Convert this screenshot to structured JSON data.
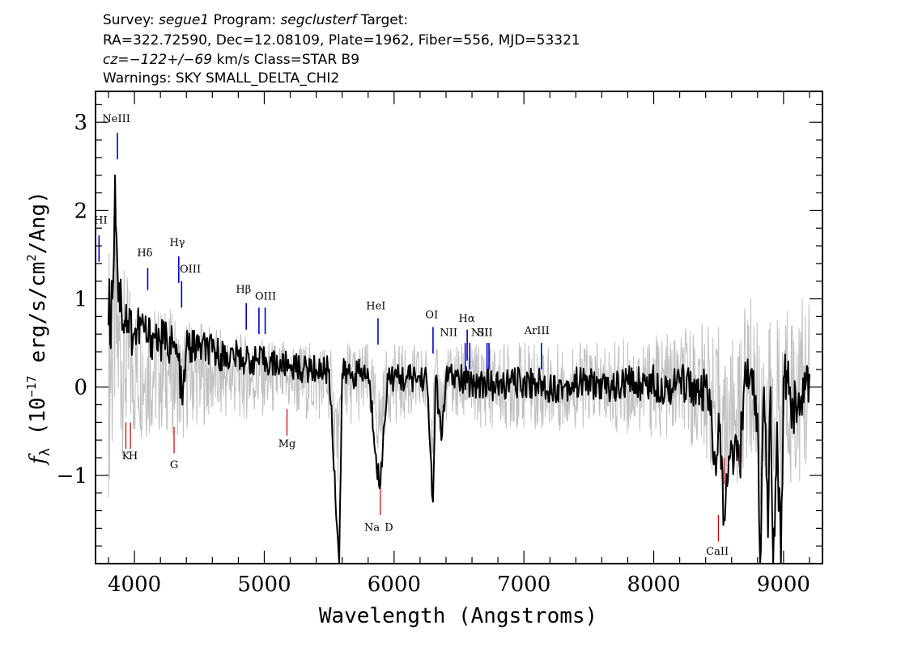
{
  "header": {
    "line1_a": "Survey: ",
    "line1_survey": "segue1",
    "line1_b": " Program: ",
    "line1_program": "segclusterf",
    "line1_c": " Target:",
    "line2": "RA=322.72590, Dec=12.08109, Plate=1962, Fiber=556, MJD=53321",
    "line3_cz": "cz=−122+/−69",
    "line3_rest": " km/s Class=STAR B9",
    "line4": "Warnings: SKY SMALL_DELTA_CHI2"
  },
  "chart_data": {
    "type": "line",
    "xlabel": "Wavelength (Angstroms)",
    "ylabel_main": "f",
    "ylabel_sub": "λ",
    "ylabel_units_a": " (10",
    "ylabel_units_exp": "−17",
    "ylabel_units_b": " erg/s/cm",
    "ylabel_units_exp2": "2",
    "ylabel_units_c": "/Ang)",
    "xlim": [
      3700,
      9300
    ],
    "ylim": [
      -2.0,
      3.35
    ],
    "xticks": [
      4000,
      5000,
      6000,
      7000,
      8000,
      9000
    ],
    "yticks": [
      -1,
      0,
      1,
      2,
      3
    ],
    "ytick_labels": [
      "−1",
      "0",
      "1",
      "2",
      "3"
    ],
    "colors": {
      "flux": "#000000",
      "error": "#c0c0c0",
      "emission": "#0000cc",
      "absorption": "#cc0000"
    },
    "series": [
      {
        "role": "flux",
        "x": [
          3800,
          3830,
          3850,
          3870,
          3900,
          3950,
          4000,
          4050,
          4100,
          4150,
          4200,
          4250,
          4300,
          4340,
          4370,
          4400,
          4500,
          4600,
          4700,
          4800,
          4861,
          4900,
          5000,
          5100,
          5200,
          5300,
          5400,
          5500,
          5577,
          5600,
          5700,
          5800,
          5890,
          5895,
          5950,
          6000,
          6100,
          6200,
          6250,
          6300,
          6320,
          6364,
          6400,
          6500,
          6563,
          6600,
          6700,
          6800,
          6900,
          7000,
          7100,
          7200,
          7300,
          7400,
          7500,
          7600,
          7700,
          7800,
          7900,
          8000,
          8100,
          8200,
          8300,
          8350,
          8400,
          8450,
          8480,
          8500,
          8542,
          8600,
          8662,
          8700,
          8750,
          8800,
          8820,
          8850,
          8880,
          8900,
          8920,
          8950,
          8980,
          9000,
          9050,
          9100,
          9150,
          9200
        ],
        "y": [
          0.7,
          1.0,
          2.4,
          1.3,
          0.9,
          0.75,
          0.6,
          0.7,
          0.55,
          0.6,
          0.5,
          0.55,
          0.45,
          0.3,
          -0.2,
          0.45,
          0.45,
          0.4,
          0.35,
          0.35,
          0.3,
          0.3,
          0.3,
          0.25,
          0.25,
          0.2,
          0.2,
          0.2,
          -2.0,
          0.15,
          0.15,
          0.15,
          -1.15,
          -1.1,
          0.15,
          0.1,
          0.1,
          0.1,
          0.1,
          -1.3,
          0.1,
          -0.6,
          0.1,
          0.1,
          0.05,
          0.05,
          0.05,
          0.0,
          0.05,
          0.05,
          0.05,
          0.0,
          0.0,
          0.05,
          0.05,
          0.0,
          0.0,
          0.05,
          0.05,
          0.05,
          0.0,
          0.05,
          0.05,
          -0.2,
          0.0,
          -0.5,
          -1.0,
          -0.3,
          -1.5,
          -0.7,
          -0.9,
          0.1,
          0.2,
          -0.3,
          -2.0,
          0.0,
          -1.7,
          0.0,
          -2.0,
          -0.4,
          -2.0,
          0.1,
          0.0,
          -0.4,
          0.1,
          0.15
        ]
      },
      {
        "role": "error",
        "x": [
          3800,
          3850,
          3900,
          4000,
          4100,
          4200,
          4300,
          4400,
          4500,
          4600,
          4800,
          5000,
          5200,
          5400,
          5600,
          5800,
          6000,
          6200,
          6400,
          6600,
          6800,
          7000,
          7200,
          7400,
          7600,
          7800,
          8000,
          8200,
          8400,
          8600,
          8800,
          9000,
          9200
        ],
        "y": [
          1.5,
          1.4,
          1.1,
          0.9,
          0.8,
          0.75,
          0.7,
          0.65,
          0.6,
          0.55,
          0.5,
          0.45,
          0.45,
          0.45,
          0.5,
          0.45,
          0.45,
          0.45,
          0.45,
          0.5,
          0.5,
          0.5,
          0.5,
          0.5,
          0.5,
          0.55,
          0.6,
          0.6,
          0.8,
          0.8,
          1.0,
          1.1,
          1.0
        ]
      }
    ],
    "emission_lines": [
      {
        "label": "HI",
        "x": 3727,
        "y0": 1.42,
        "y1": 1.72
      },
      {
        "label": "NeIII",
        "x": 3869,
        "y0": 2.58,
        "y1": 2.88
      },
      {
        "label": "Hδ",
        "x": 4102,
        "y0": 1.1,
        "y1": 1.35
      },
      {
        "label": "Hγ",
        "x": 4341,
        "y0": 1.18,
        "y1": 1.48
      },
      {
        "label": "OIII",
        "x": 4363,
        "y0": 0.9,
        "y1": 1.2
      },
      {
        "label": "Hβ",
        "x": 4861,
        "y0": 0.65,
        "y1": 0.95
      },
      {
        "label": "OIII",
        "x": 4959,
        "y0": 0.6,
        "y1": 0.9
      },
      {
        "label": "OIII",
        "x": 5007,
        "y0": 0.6,
        "y1": 0.9
      },
      {
        "label": "HeI",
        "x": 5876,
        "y0": 0.48,
        "y1": 0.78
      },
      {
        "label": "OI",
        "x": 6300,
        "y0": 0.38,
        "y1": 0.68
      },
      {
        "label": "NII",
        "x": 6548,
        "y0": 0.2,
        "y1": 0.5
      },
      {
        "label": "Hα",
        "x": 6563,
        "y0": 0.3,
        "y1": 0.65
      },
      {
        "label": "NII",
        "x": 6583,
        "y0": 0.2,
        "y1": 0.5
      },
      {
        "label": "SII",
        "x": 6716,
        "y0": 0.2,
        "y1": 0.5
      },
      {
        "label": "SII",
        "x": 6731,
        "y0": 0.2,
        "y1": 0.5
      },
      {
        "label": "ArIII",
        "x": 7135,
        "y0": 0.2,
        "y1": 0.5
      }
    ],
    "absorption_lines": [
      {
        "label": "K",
        "x": 3934,
        "y0": -0.7,
        "y1": -0.4
      },
      {
        "label": "H",
        "x": 3969,
        "y0": -0.7,
        "y1": -0.4
      },
      {
        "label": "G",
        "x": 4305,
        "y0": -0.75,
        "y1": -0.45
      },
      {
        "label": "Mg",
        "x": 5175,
        "y0": -0.55,
        "y1": -0.25
      },
      {
        "label": "Na D",
        "x": 5894,
        "y0": -1.45,
        "y1": -1.15
      },
      {
        "label": "CaII",
        "x": 8498,
        "y0": -1.75,
        "y1": -1.45
      },
      {
        "label": "",
        "x": 8542,
        "y0": -1.1,
        "y1": -0.8
      },
      {
        "label": "",
        "x": 8662,
        "y0": -0.95,
        "y1": -0.65
      }
    ],
    "absorption_label_positions": [
      {
        "label": "K",
        "x": 3934,
        "y": -0.82
      },
      {
        "label": "H",
        "x": 3990,
        "y": -0.82
      },
      {
        "label": "G",
        "x": 4305,
        "y": -0.92
      },
      {
        "label": "Mg",
        "x": 5175,
        "y": -0.68
      },
      {
        "label": "Na",
        "x": 5830,
        "y": -1.63
      },
      {
        "label": "D",
        "x": 5960,
        "y": -1.63
      },
      {
        "label": "CaII",
        "x": 8490,
        "y": -1.9
      }
    ],
    "emission_label_positions": [
      {
        "label": "HI",
        "x": 3740,
        "y": 1.85
      },
      {
        "label": "NeIII",
        "x": 3860,
        "y": 3.0
      },
      {
        "label": "Hδ",
        "x": 4080,
        "y": 1.48
      },
      {
        "label": "Hγ",
        "x": 4330,
        "y": 1.6
      },
      {
        "label": "OIII",
        "x": 4430,
        "y": 1.3
      },
      {
        "label": "Hβ",
        "x": 4840,
        "y": 1.07
      },
      {
        "label": "OIII",
        "x": 5010,
        "y": 0.99
      },
      {
        "label": "HeI",
        "x": 5860,
        "y": 0.88
      },
      {
        "label": "OI",
        "x": 6290,
        "y": 0.78
      },
      {
        "label": "NII",
        "x": 6420,
        "y": 0.58
      },
      {
        "label": "Hα",
        "x": 6560,
        "y": 0.74
      },
      {
        "label": "NII",
        "x": 6660,
        "y": 0.58
      },
      {
        "label": "SII",
        "x": 6700,
        "y": 0.58
      },
      {
        "label": "ArIII",
        "x": 7100,
        "y": 0.6
      }
    ]
  }
}
